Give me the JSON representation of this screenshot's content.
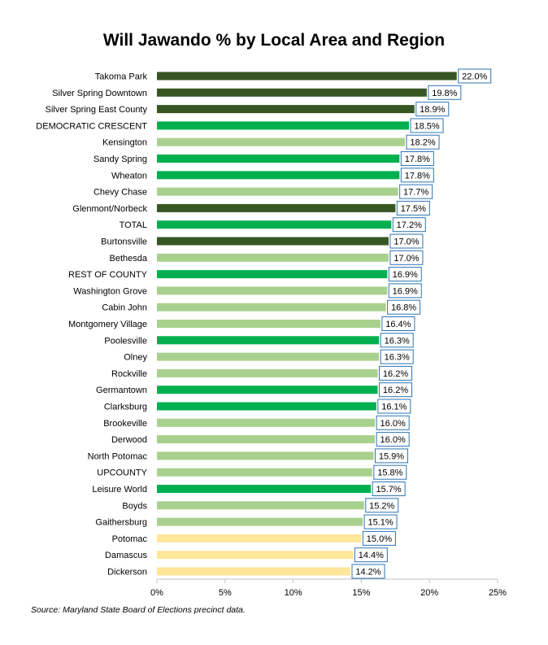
{
  "chart_data": {
    "type": "bar",
    "orientation": "horizontal",
    "title": "Will Jawando % by Local Area and Region",
    "xlim": [
      0,
      25
    ],
    "xticks": [
      "0%",
      "5%",
      "10%",
      "15%",
      "20%",
      "25%"
    ],
    "grid": false,
    "legend": "none",
    "categories": [
      "Takoma Park",
      "Silver Spring Downtown",
      "Silver Spring East County",
      "DEMOCRATIC CRESCENT",
      "Kensington",
      "Sandy Spring",
      "Wheaton",
      "Chevy Chase",
      "Glenmont/Norbeck",
      "TOTAL",
      "Burtonsville",
      "Bethesda",
      "REST OF COUNTY",
      "Washington Grove",
      "Cabin John",
      "Montgomery Village",
      "Poolesville",
      "Olney",
      "Rockville",
      "Germantown",
      "Clarksburg",
      "Brookeville",
      "Derwood",
      "North Potomac",
      "UPCOUNTY",
      "Leisure World",
      "Boyds",
      "Gaithersburg",
      "Potomac",
      "Damascus",
      "Dickerson"
    ],
    "values": [
      22.0,
      19.8,
      18.9,
      18.5,
      18.2,
      17.8,
      17.8,
      17.7,
      17.5,
      17.2,
      17.0,
      17.0,
      16.9,
      16.9,
      16.8,
      16.4,
      16.3,
      16.3,
      16.2,
      16.2,
      16.1,
      16.0,
      16.0,
      15.9,
      15.8,
      15.7,
      15.2,
      15.1,
      15.0,
      14.4,
      14.2
    ],
    "labels": [
      "22.0%",
      "19.8%",
      "18.9%",
      "18.5%",
      "18.2%",
      "17.8%",
      "17.8%",
      "17.7%",
      "17.5%",
      "17.2%",
      "17.0%",
      "17.0%",
      "16.9%",
      "16.9%",
      "16.8%",
      "16.4%",
      "16.3%",
      "16.3%",
      "16.2%",
      "16.2%",
      "16.1%",
      "16.0%",
      "16.0%",
      "15.9%",
      "15.8%",
      "15.7%",
      "15.2%",
      "15.1%",
      "15.0%",
      "14.4%",
      "14.2%"
    ],
    "bar_colors": [
      "#375623",
      "#375623",
      "#375623",
      "#00B050",
      "#A9D18E",
      "#00B050",
      "#00B050",
      "#A9D18E",
      "#375623",
      "#00B050",
      "#375623",
      "#A9D18E",
      "#00B050",
      "#A9D18E",
      "#A9D18E",
      "#A9D18E",
      "#00B050",
      "#A9D18E",
      "#A9D18E",
      "#00B050",
      "#00B050",
      "#A9D18E",
      "#A9D18E",
      "#A9D18E",
      "#A9D18E",
      "#00B050",
      "#A9D18E",
      "#A9D18E",
      "#FFE699",
      "#FFE699",
      "#FFE699"
    ],
    "data_label_border_color": "#2E75B6",
    "source": "Source: Maryland State Board of Elections precinct data."
  }
}
